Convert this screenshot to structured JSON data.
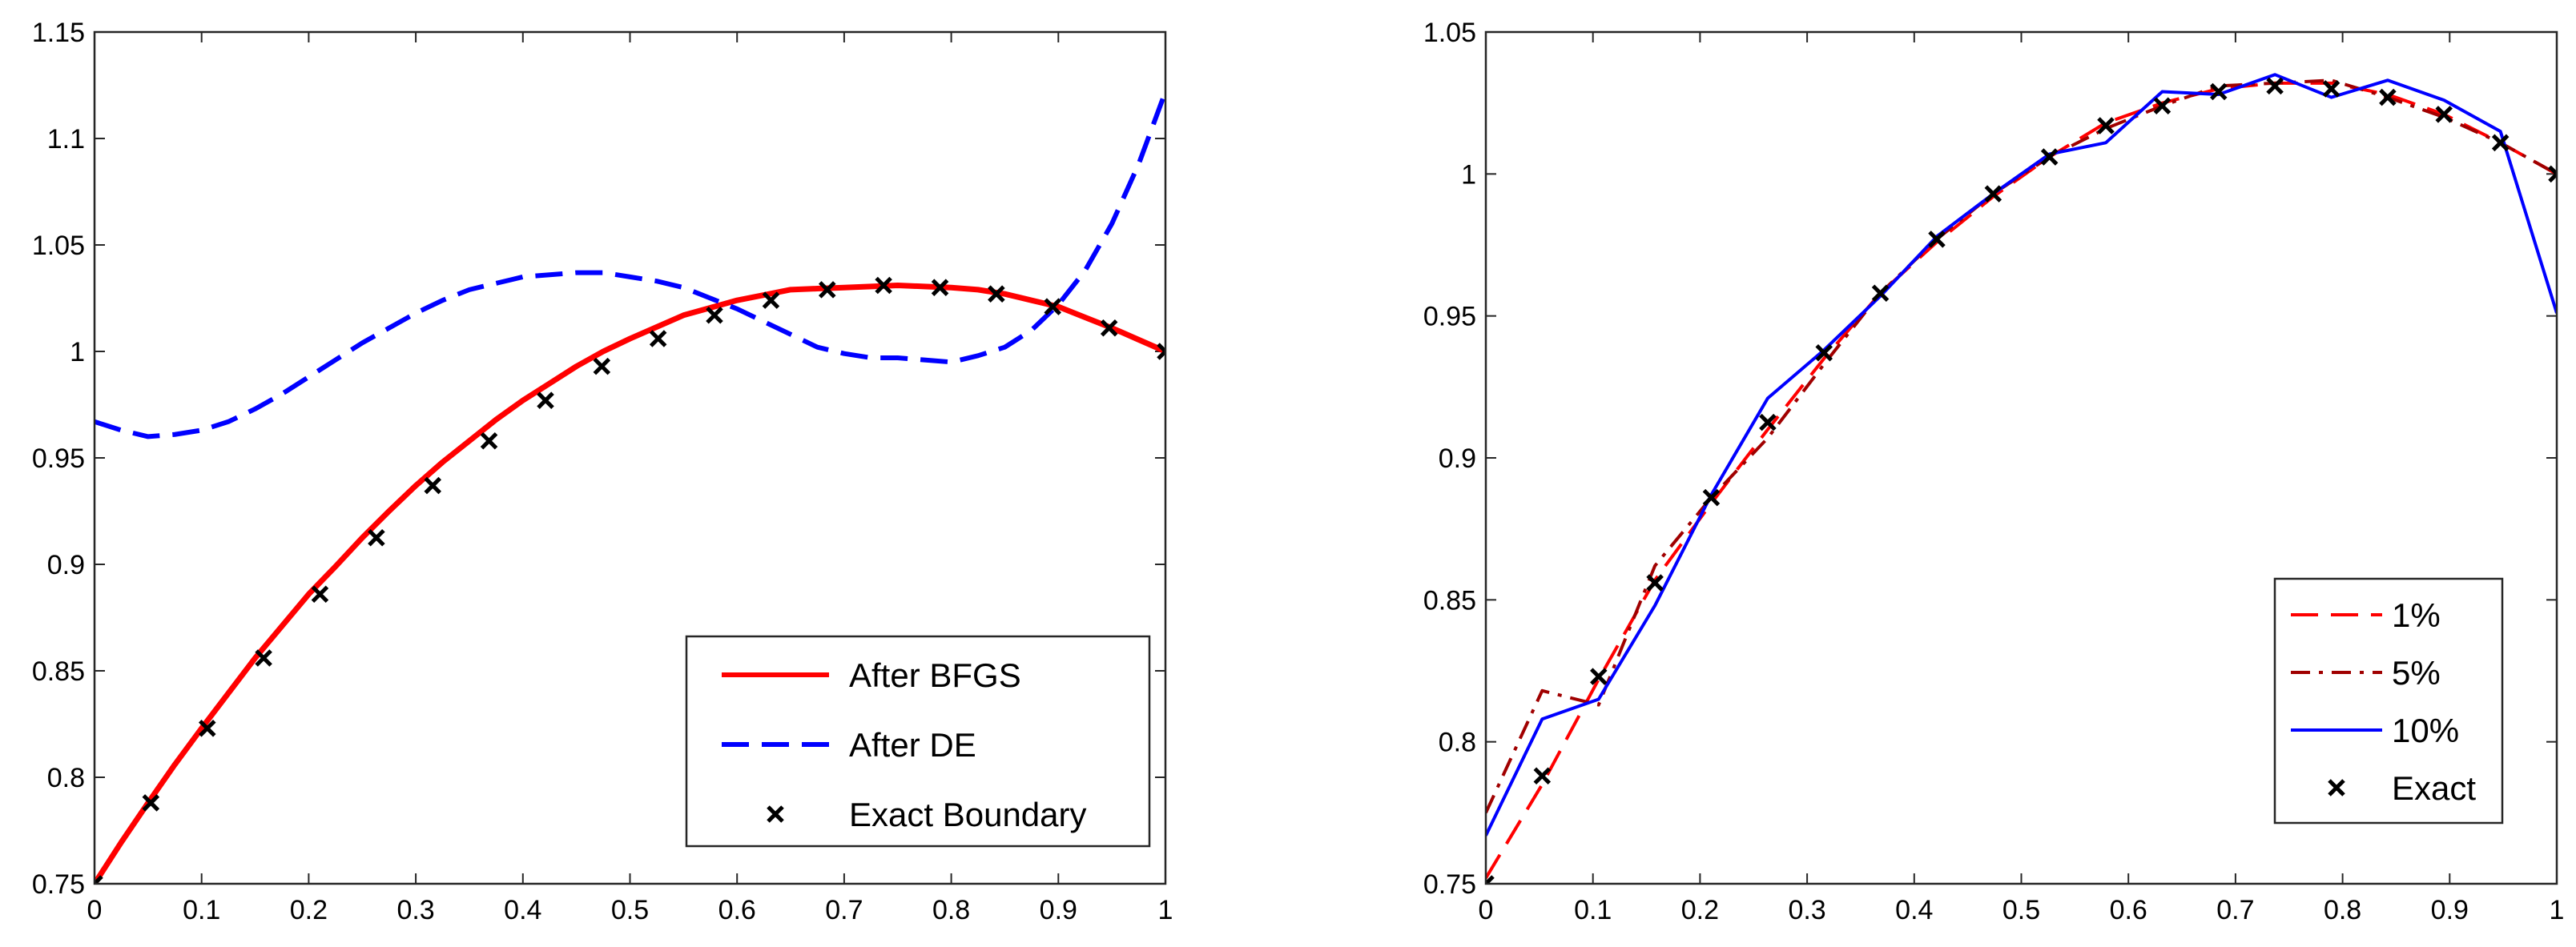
{
  "chart_data": [
    {
      "type": "line",
      "title": "",
      "xlabel": "",
      "ylabel": "",
      "xlim": [
        0,
        1
      ],
      "ylim": [
        0.75,
        1.15
      ],
      "xticks": [
        0,
        0.1,
        0.2,
        0.3,
        0.4,
        0.5,
        0.6,
        0.7,
        0.8,
        0.9,
        1
      ],
      "xtick_labels": [
        "0",
        "0.1",
        "0.2",
        "0.3",
        "0.4",
        "0.5",
        "0.6",
        "0.7",
        "0.8",
        "0.9",
        "1"
      ],
      "yticks": [
        0.75,
        0.8,
        0.85,
        0.9,
        0.95,
        1,
        1.05,
        1.1,
        1.15
      ],
      "ytick_labels": [
        "0.75",
        "0.8",
        "0.85",
        "0.9",
        "0.95",
        "1",
        "1.05",
        "1.1",
        "1.15"
      ],
      "grid": false,
      "legend_position": "bottom-right",
      "series": [
        {
          "name": "After BFGS",
          "style": "solid",
          "color": "#ff0000",
          "x": [
            0,
            0.025,
            0.05,
            0.075,
            0.1,
            0.125,
            0.15,
            0.175,
            0.2,
            0.225,
            0.25,
            0.275,
            0.3,
            0.325,
            0.35,
            0.375,
            0.4,
            0.425,
            0.45,
            0.475,
            0.5,
            0.525,
            0.55,
            0.575,
            0.6,
            0.625,
            0.65,
            0.675,
            0.7,
            0.725,
            0.75,
            0.775,
            0.8,
            0.825,
            0.85,
            0.875,
            0.9,
            0.925,
            0.95,
            0.975,
            1
          ],
          "y": [
            0.75,
            0.7695,
            0.788,
            0.806,
            0.823,
            0.8395,
            0.856,
            0.871,
            0.886,
            0.899,
            0.9125,
            0.925,
            0.937,
            0.948,
            0.958,
            0.968,
            0.977,
            0.985,
            0.993,
            1,
            1.006,
            1.0115,
            1.017,
            1.0205,
            1.024,
            1.0265,
            1.029,
            1.0295,
            1.03,
            1.0305,
            1.031,
            1.0305,
            1.03,
            1.029,
            1.027,
            1.024,
            1.021,
            1.016,
            1.011,
            1.0055,
            1
          ]
        },
        {
          "name": "After DE",
          "style": "dashed",
          "color": "#0000ff",
          "x": [
            0,
            0.025,
            0.05,
            0.075,
            0.1,
            0.125,
            0.15,
            0.175,
            0.2,
            0.225,
            0.25,
            0.275,
            0.3,
            0.325,
            0.35,
            0.375,
            0.4,
            0.425,
            0.45,
            0.475,
            0.5,
            0.525,
            0.55,
            0.575,
            0.6,
            0.625,
            0.65,
            0.675,
            0.7,
            0.725,
            0.75,
            0.775,
            0.8,
            0.825,
            0.85,
            0.875,
            0.9,
            0.925,
            0.95,
            0.975,
            1
          ],
          "y": [
            0.967,
            0.963,
            0.96,
            0.961,
            0.963,
            0.967,
            0.973,
            0.98,
            0.988,
            0.996,
            1.004,
            1.011,
            1.018,
            1.024,
            1.029,
            1.032,
            1.035,
            1.036,
            1.037,
            1.037,
            1.035,
            1.033,
            1.03,
            1.025,
            1.02,
            1.014,
            1.008,
            1.002,
            0.999,
            0.997,
            0.997,
            0.996,
            0.995,
            0.998,
            1.002,
            1.01,
            1.022,
            1.038,
            1.06,
            1.088,
            1.122
          ]
        },
        {
          "name": "Exact Boundary",
          "style": "marker-x",
          "color": "#000000",
          "x": [
            0,
            0.0526,
            0.1053,
            0.1579,
            0.2105,
            0.2632,
            0.3158,
            0.3684,
            0.4211,
            0.4737,
            0.5263,
            0.5789,
            0.6316,
            0.6842,
            0.7368,
            0.7895,
            0.8421,
            0.8947,
            0.9474,
            1
          ],
          "y": [
            0.75,
            0.788,
            0.823,
            0.856,
            0.886,
            0.9125,
            0.937,
            0.958,
            0.977,
            0.993,
            1.006,
            1.017,
            1.024,
            1.029,
            1.031,
            1.03,
            1.027,
            1.021,
            1.011,
            1
          ]
        }
      ]
    },
    {
      "type": "line",
      "title": "",
      "xlabel": "",
      "ylabel": "",
      "xlim": [
        0,
        1
      ],
      "ylim": [
        0.75,
        1.05
      ],
      "xticks": [
        0,
        0.1,
        0.2,
        0.3,
        0.4,
        0.5,
        0.6,
        0.7,
        0.8,
        0.9,
        1
      ],
      "xtick_labels": [
        "0",
        "0.1",
        "0.2",
        "0.3",
        "0.4",
        "0.5",
        "0.6",
        "0.7",
        "0.8",
        "0.9",
        "1"
      ],
      "yticks": [
        0.75,
        0.8,
        0.85,
        0.9,
        0.95,
        1,
        1.05
      ],
      "ytick_labels": [
        "0.75",
        "0.8",
        "0.85",
        "0.9",
        "0.95",
        "1",
        "1.05"
      ],
      "grid": false,
      "legend_position": "bottom-right",
      "series": [
        {
          "name": "1%",
          "style": "dashed",
          "color": "#ff0000",
          "x": [
            0,
            0.0526,
            0.1053,
            0.1579,
            0.2105,
            0.2632,
            0.3158,
            0.3684,
            0.4211,
            0.4737,
            0.5263,
            0.5789,
            0.6316,
            0.6842,
            0.7368,
            0.7895,
            0.8421,
            0.8947,
            0.9474,
            1
          ],
          "y": [
            0.752,
            0.785,
            0.822,
            0.857,
            0.884,
            0.91,
            0.935,
            0.958,
            0.976,
            0.992,
            1.006,
            1.018,
            1.025,
            1.03,
            1.032,
            1.032,
            1.028,
            1.021,
            1.011,
            1
          ]
        },
        {
          "name": "5%",
          "style": "dashdot",
          "color": "#a00000",
          "x": [
            0,
            0.0526,
            0.1053,
            0.1579,
            0.2105,
            0.2632,
            0.3158,
            0.3684,
            0.4211,
            0.4737,
            0.5263,
            0.5789,
            0.6316,
            0.6842,
            0.7368,
            0.7895,
            0.8421,
            0.8947,
            0.9474,
            1
          ],
          "y": [
            0.775,
            0.818,
            0.813,
            0.862,
            0.886,
            0.907,
            0.933,
            0.958,
            0.977,
            0.993,
            1.006,
            1.016,
            1.024,
            1.031,
            1.032,
            1.033,
            1.027,
            1.02,
            1.011,
            1
          ]
        },
        {
          "name": "10%",
          "style": "solid",
          "color": "#0000ff",
          "x": [
            0,
            0.0526,
            0.1053,
            0.1579,
            0.2105,
            0.2632,
            0.3158,
            0.3684,
            0.4211,
            0.4737,
            0.5263,
            0.5789,
            0.6316,
            0.6842,
            0.7368,
            0.7895,
            0.8421,
            0.8947,
            0.9474,
            1
          ],
          "y": [
            0.767,
            0.808,
            0.815,
            0.848,
            0.887,
            0.921,
            0.938,
            0.957,
            0.978,
            0.993,
            1.007,
            1.011,
            1.029,
            1.028,
            1.035,
            1.027,
            1.033,
            1.026,
            1.015,
            0.951
          ]
        },
        {
          "name": "Exact",
          "style": "marker-x",
          "color": "#000000",
          "x": [
            0,
            0.0526,
            0.1053,
            0.1579,
            0.2105,
            0.2632,
            0.3158,
            0.3684,
            0.4211,
            0.4737,
            0.5263,
            0.5789,
            0.6316,
            0.6842,
            0.7368,
            0.7895,
            0.8421,
            0.8947,
            0.9474,
            1
          ],
          "y": [
            0.75,
            0.788,
            0.823,
            0.856,
            0.886,
            0.9125,
            0.937,
            0.958,
            0.977,
            0.993,
            1.006,
            1.017,
            1.024,
            1.029,
            1.031,
            1.03,
            1.027,
            1.021,
            1.011,
            1
          ]
        }
      ]
    }
  ]
}
